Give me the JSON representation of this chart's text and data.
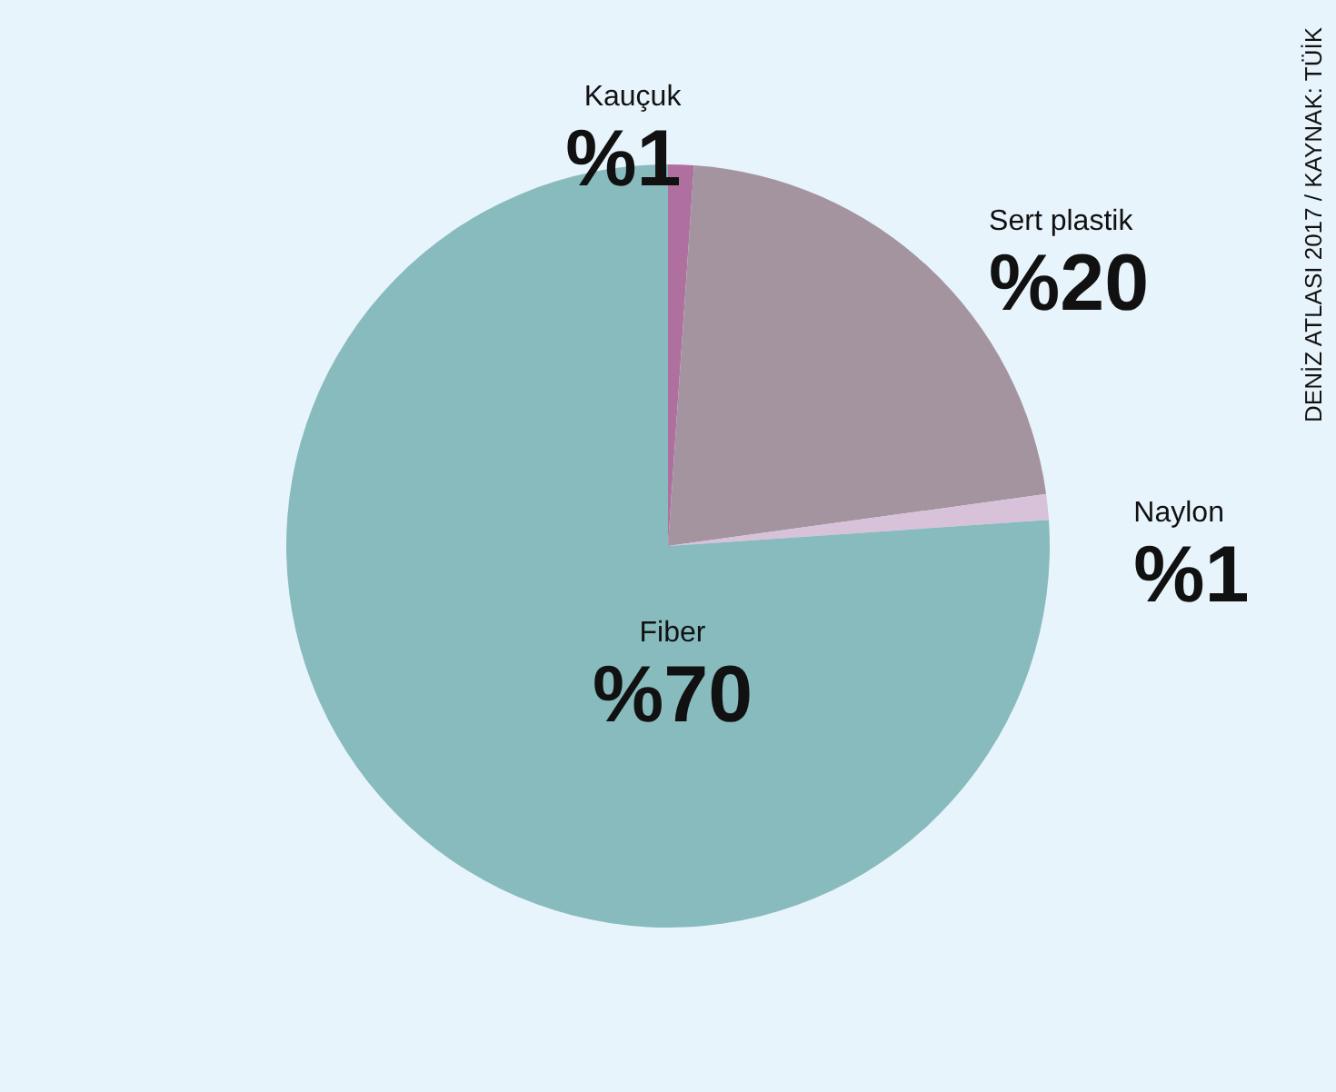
{
  "chart_data": {
    "type": "pie",
    "categories": [
      "Kauçuk",
      "Sert plastik",
      "Naylon",
      "Fiber"
    ],
    "values": [
      1,
      20,
      1,
      70
    ],
    "value_labels": [
      "%1",
      "%20",
      "%1",
      "%70"
    ],
    "colors": [
      "#b0709f",
      "#a3949f",
      "#d7c2da",
      "#88bbbd"
    ],
    "annotations": [
      "DENİZ ATLASI 2017 / KAYNAK: TÜİK"
    ],
    "legend": false
  }
}
